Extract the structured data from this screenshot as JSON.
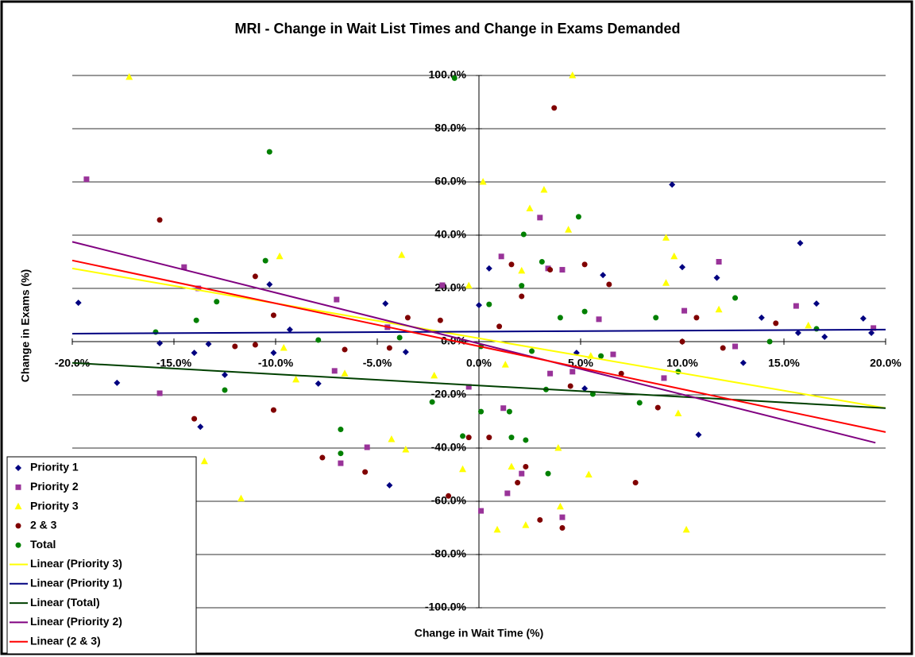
{
  "chart_data": {
    "type": "scatter",
    "title": "MRI - Change in Wait List Times and Change in Exams Demanded",
    "x_label": "Change in Wait Time (%)",
    "y_label": "Change in Exams (%)",
    "xlim": [
      -20,
      20
    ],
    "ylim": [
      -100,
      100
    ],
    "xticks": [
      {
        "value": -20,
        "label": "-20.0%"
      },
      {
        "value": -15,
        "label": "-15.0%"
      },
      {
        "value": -10,
        "label": "-10.0%"
      },
      {
        "value": -5,
        "label": "-5.0%"
      },
      {
        "value": 0,
        "label": "0.0%"
      },
      {
        "value": 5,
        "label": "5.0%"
      },
      {
        "value": 10,
        "label": "10.0%"
      },
      {
        "value": 15,
        "label": "15.0%"
      },
      {
        "value": 20,
        "label": "20.0%"
      }
    ],
    "yticks": [
      {
        "value": -100,
        "label": "-100.0%"
      },
      {
        "value": -80,
        "label": "-80.0%"
      },
      {
        "value": -60,
        "label": "-60.0%"
      },
      {
        "value": -40,
        "label": "-40.0%"
      },
      {
        "value": -20,
        "label": "-20.0%"
      },
      {
        "value": 0,
        "label": "0.0%"
      },
      {
        "value": 20,
        "label": "20.0%"
      },
      {
        "value": 40,
        "label": "40.0%"
      },
      {
        "value": 60,
        "label": "60.0%"
      },
      {
        "value": 80,
        "label": "80.0%"
      },
      {
        "value": 100,
        "label": "100.0%"
      }
    ],
    "grid": true,
    "legend": "bottom-left",
    "series": [
      {
        "name": "Priority 1",
        "color": "#000080",
        "marker": "diamond",
        "x": [
          -19.7,
          -17.8,
          -15.7,
          -14.0,
          -13.7,
          -13.3,
          -12.5,
          -10.3,
          -10.1,
          -9.3,
          -7.9,
          -4.6,
          -4.4,
          -3.6,
          0,
          0.5,
          4.8,
          5.2,
          6.1,
          9.5,
          10,
          10.8,
          11.7,
          13,
          13.9,
          15.7,
          15.8,
          16.6,
          17,
          18.9,
          19.3
        ],
        "values": [
          14.6,
          -15.5,
          -0.6,
          -4.2,
          -32,
          -0.9,
          -12.5,
          21.5,
          -4.2,
          4.5,
          -15.8,
          14.3,
          -54,
          -3.9,
          13.7,
          27.5,
          -4.2,
          -17.6,
          25,
          59,
          28,
          -35,
          24,
          -8,
          9,
          3.3,
          37,
          14.3,
          1.8,
          8.7,
          3.3
        ]
      },
      {
        "name": "Priority 2",
        "color": "#993399",
        "marker": "square",
        "x": [
          -19.3,
          -15.7,
          -14.5,
          -13.8,
          -7.1,
          -7,
          -6.8,
          -5.5,
          -4.5,
          -1.8,
          -0.5,
          0.1,
          1.1,
          1.2,
          1.4,
          2.1,
          3,
          3.4,
          3.5,
          4.1,
          4.1,
          4.6,
          5.9,
          6.6,
          9.1,
          10.1,
          11.8,
          12.6,
          15.6,
          19.4
        ],
        "values": [
          61,
          -19.4,
          28,
          20,
          -11,
          15.8,
          -45.7,
          -39.7,
          5.4,
          21.2,
          -17,
          -63.6,
          32,
          -25,
          -57,
          -49.6,
          46.6,
          27.5,
          -12,
          27,
          -66,
          -11.3,
          8.4,
          -4.8,
          -13.7,
          11.6,
          30,
          -1.8,
          13.4,
          5.1
        ]
      },
      {
        "name": "Priority 3",
        "color": "#ffff00",
        "marker": "triangle",
        "x": [
          -17.2,
          -13.5,
          -11.7,
          -9.8,
          -9.6,
          -9,
          -6.6,
          -4.3,
          -3.8,
          -3.6,
          -2.2,
          -0.8,
          -0.5,
          0.2,
          0.9,
          1.3,
          1.6,
          2.1,
          2.5,
          2.3,
          3.2,
          3.9,
          4,
          4.4,
          4.6,
          5.4,
          5.5,
          9.2,
          9.6,
          9.2,
          9.8,
          10.2,
          11.8,
          16.2
        ],
        "values": [
          99.4,
          -45,
          -59,
          32,
          -2.4,
          -14.3,
          -12,
          -36.7,
          32.5,
          -40.6,
          -12.8,
          -48,
          21,
          60,
          -70.7,
          -8.7,
          -47,
          26.6,
          50,
          -69,
          57,
          -40,
          -62,
          42,
          100,
          -50,
          -5.4,
          39,
          32,
          22,
          -27,
          -70.7,
          12,
          6
        ]
      },
      {
        "name": "2 & 3",
        "color": "#800000",
        "marker": "circle",
        "x": [
          -15.7,
          -14,
          -12,
          -11,
          -11,
          -10.1,
          -10.1,
          -7.7,
          -6.6,
          -5.6,
          -4.4,
          -3.5,
          -1.9,
          -1.5,
          -0.5,
          0.5,
          1,
          1.6,
          1.9,
          2.1,
          2.3,
          3,
          3.5,
          3.7,
          4.1,
          4.5,
          5.2,
          6.4,
          7,
          7.7,
          8.8,
          10,
          10.7,
          12,
          14.6
        ],
        "values": [
          45.7,
          -29,
          -1.8,
          24.5,
          -1.2,
          9.9,
          -25.7,
          -43.6,
          -3,
          -49,
          -2.4,
          9,
          8,
          -58,
          -36,
          -36,
          5.7,
          29,
          -53,
          17,
          -47,
          -67,
          27,
          87.8,
          -70,
          -16.7,
          29,
          21.5,
          -12,
          -53,
          -24.8,
          0,
          9,
          -2.4,
          6.9
        ]
      },
      {
        "name": "Total",
        "color": "#008000",
        "marker": "circle",
        "x": [
          -15.9,
          -13.9,
          -12.9,
          -12.5,
          -10.5,
          -10.3,
          -7.9,
          -6.8,
          -6.8,
          -3.9,
          -2.3,
          -1.2,
          -0.8,
          0.1,
          0.1,
          0.5,
          1.5,
          1.6,
          2.1,
          2.2,
          2.3,
          2.6,
          3.1,
          3.3,
          3.4,
          4,
          4.9,
          5.2,
          5.6,
          6,
          7.9,
          8.7,
          9.8,
          12.6,
          14.3,
          16.6
        ],
        "values": [
          3.6,
          8,
          15,
          -18.2,
          30.4,
          71.3,
          0.6,
          -33,
          -42,
          1.5,
          -22.7,
          99,
          -35.5,
          -1.8,
          -26.3,
          14,
          -26.3,
          -36,
          21,
          40.3,
          -37,
          -3.6,
          30,
          -18,
          -49.6,
          9,
          46.9,
          11.3,
          -19.7,
          -5.4,
          -23,
          9,
          -11.3,
          16.4,
          0,
          4.8
        ]
      }
    ],
    "trendlines": [
      {
        "name": "Linear (Priority 3)",
        "color": "#ffff00",
        "x": [
          -20,
          20
        ],
        "values": [
          27.5,
          -25
        ]
      },
      {
        "name": "Linear (Priority 1)",
        "color": "#000080",
        "x": [
          -20,
          20
        ],
        "values": [
          3,
          4.5
        ]
      },
      {
        "name": "Linear (Total)",
        "color": "#004000",
        "x": [
          -20,
          20
        ],
        "values": [
          -8,
          -25
        ]
      },
      {
        "name": "Linear (Priority 2)",
        "color": "#800080",
        "x": [
          -20,
          19.5
        ],
        "values": [
          37.5,
          -38
        ]
      },
      {
        "name": "Linear (2 & 3)",
        "color": "#ff0000",
        "x": [
          -20,
          20
        ],
        "values": [
          30.5,
          -34
        ]
      }
    ]
  }
}
